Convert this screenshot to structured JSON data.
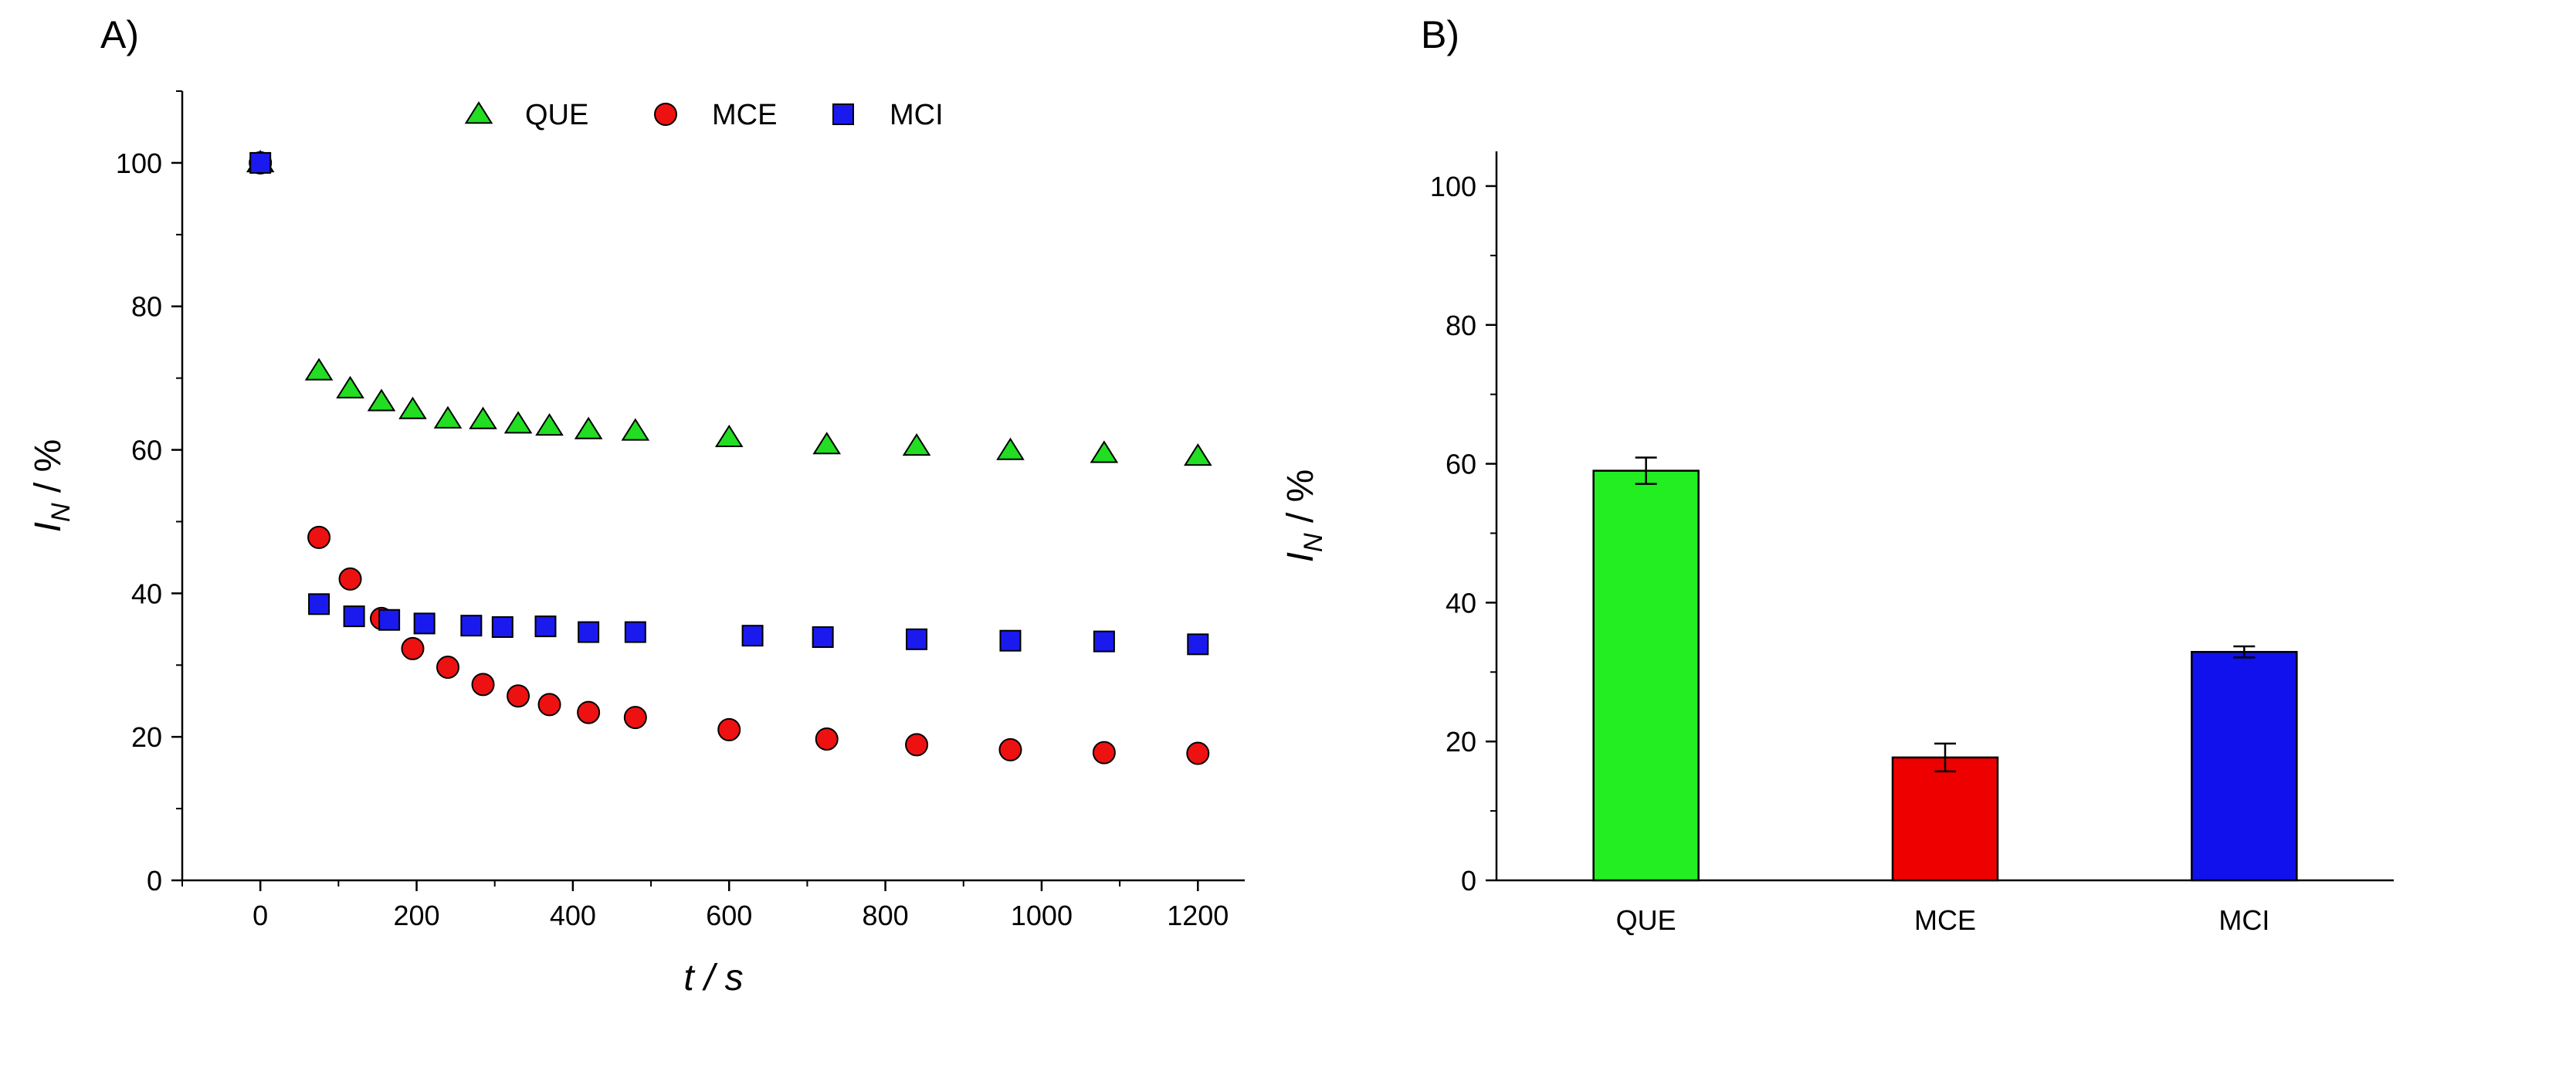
{
  "panels": {
    "a_label": "A)",
    "b_label": "B)"
  },
  "chart_data": [
    {
      "type": "scatter",
      "panel": "A)",
      "xlabel": "t / s",
      "ylabel": "I_N / %",
      "ylabel_main": "I",
      "ylabel_sub": "N",
      "ylabel_rest": " / %",
      "xlim": [
        -100,
        1260
      ],
      "ylim": [
        0,
        110
      ],
      "xticks": [
        0,
        200,
        400,
        600,
        800,
        1000,
        1200
      ],
      "yticks": [
        0,
        20,
        40,
        60,
        80,
        100
      ],
      "legend": "top-center",
      "series": [
        {
          "name": "QUE",
          "marker": "triangle",
          "color": "#22dd22",
          "x": [
            0,
            75,
            115,
            155,
            195,
            240,
            285,
            330,
            370,
            420,
            480,
            600,
            725,
            840,
            960,
            1080,
            1200
          ],
          "y": [
            100,
            71,
            68.5,
            66.7,
            65.6,
            64.3,
            64.2,
            63.6,
            63.3,
            62.8,
            62.6,
            61.7,
            60.7,
            60.5,
            59.9,
            59.5,
            59.1
          ]
        },
        {
          "name": "MCE",
          "marker": "circle",
          "color": "#ee1111",
          "x": [
            0,
            75,
            115,
            155,
            195,
            240,
            285,
            330,
            370,
            420,
            480,
            600,
            725,
            840,
            960,
            1080,
            1200
          ],
          "y": [
            100,
            47.8,
            42,
            36.5,
            32.3,
            29.7,
            27.3,
            25.7,
            24.5,
            23.4,
            22.7,
            21,
            19.7,
            18.9,
            18.2,
            17.8,
            17.7
          ]
        },
        {
          "name": "MCI",
          "marker": "square",
          "color": "#1a1aee",
          "x": [
            0,
            75,
            120,
            165,
            210,
            270,
            310,
            365,
            420,
            480,
            630,
            720,
            840,
            960,
            1080,
            1200
          ],
          "y": [
            100,
            38.5,
            36.8,
            36.3,
            35.8,
            35.5,
            35.3,
            35.4,
            34.6,
            34.6,
            34.1,
            33.9,
            33.6,
            33.4,
            33.3,
            32.9
          ]
        }
      ]
    },
    {
      "type": "bar",
      "panel": "B)",
      "xlabel": "",
      "ylabel": "I_N / %",
      "ylabel_main": "I",
      "ylabel_sub": "N",
      "ylabel_rest": " / %",
      "categories": [
        "QUE",
        "MCE",
        "MCI"
      ],
      "values": [
        59,
        17.7,
        32.9
      ],
      "errors": [
        1.9,
        2.0,
        0.8
      ],
      "colors": [
        "#22ee22",
        "#ee0000",
        "#1111ee"
      ],
      "ylim": [
        0,
        105
      ],
      "yticks": [
        0,
        20,
        40,
        60,
        80,
        100
      ]
    }
  ]
}
